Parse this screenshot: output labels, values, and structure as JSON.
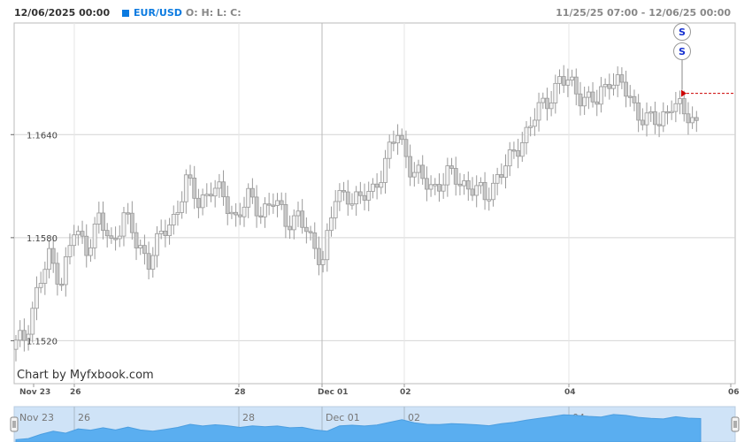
{
  "header": {
    "date": "12/06/2025 00:00",
    "symbol": "EUR/USD",
    "ohlc": "O: H: L: C:",
    "range": "11/25/25 07:00 - 12/06/25 00:00"
  },
  "credit": "Chart by Myfxbook.com",
  "signals": [
    "S",
    "S"
  ],
  "colors": {
    "candle": "#c8c8c8",
    "grid": "#d4d4d4",
    "signal_line": "#cc0000",
    "navigator_fill": "#5aaef0",
    "navigator_bg": "#cfe3f7"
  },
  "chart_data": {
    "type": "candlestick",
    "title": "EUR/USD",
    "ylim": [
      1.1495,
      1.1705
    ],
    "yticks": [
      "1.1520",
      "1.1580",
      "1.1640"
    ],
    "xticks": [
      "Nov 23",
      "26",
      "28",
      "Dec 01",
      "02",
      "04",
      "06"
    ],
    "navigator_ticks": [
      "Nov 23",
      "26",
      "28",
      "Dec 01",
      "02",
      "04"
    ],
    "signal_level": 1.1664,
    "close_series": [
      1.1515,
      1.1522,
      1.1548,
      1.1568,
      1.1556,
      1.1583,
      1.1575,
      1.159,
      1.1576,
      1.1594,
      1.1576,
      1.1568,
      1.158,
      1.1592,
      1.1612,
      1.1601,
      1.1609,
      1.1603,
      1.1592,
      1.1602,
      1.1596,
      1.1601,
      1.159,
      1.1593,
      1.1577,
      1.1569,
      1.1602,
      1.1606,
      1.1601,
      1.1608,
      1.1624,
      1.1641,
      1.1622,
      1.1612,
      1.161,
      1.1616,
      1.1613,
      1.1609,
      1.1603,
      1.1616,
      1.1624,
      1.1638,
      1.165,
      1.166,
      1.1672,
      1.1668,
      1.1662,
      1.1658,
      1.1674,
      1.1668,
      1.1656,
      1.1649,
      1.1646,
      1.166,
      1.1651,
      1.1648
    ]
  }
}
